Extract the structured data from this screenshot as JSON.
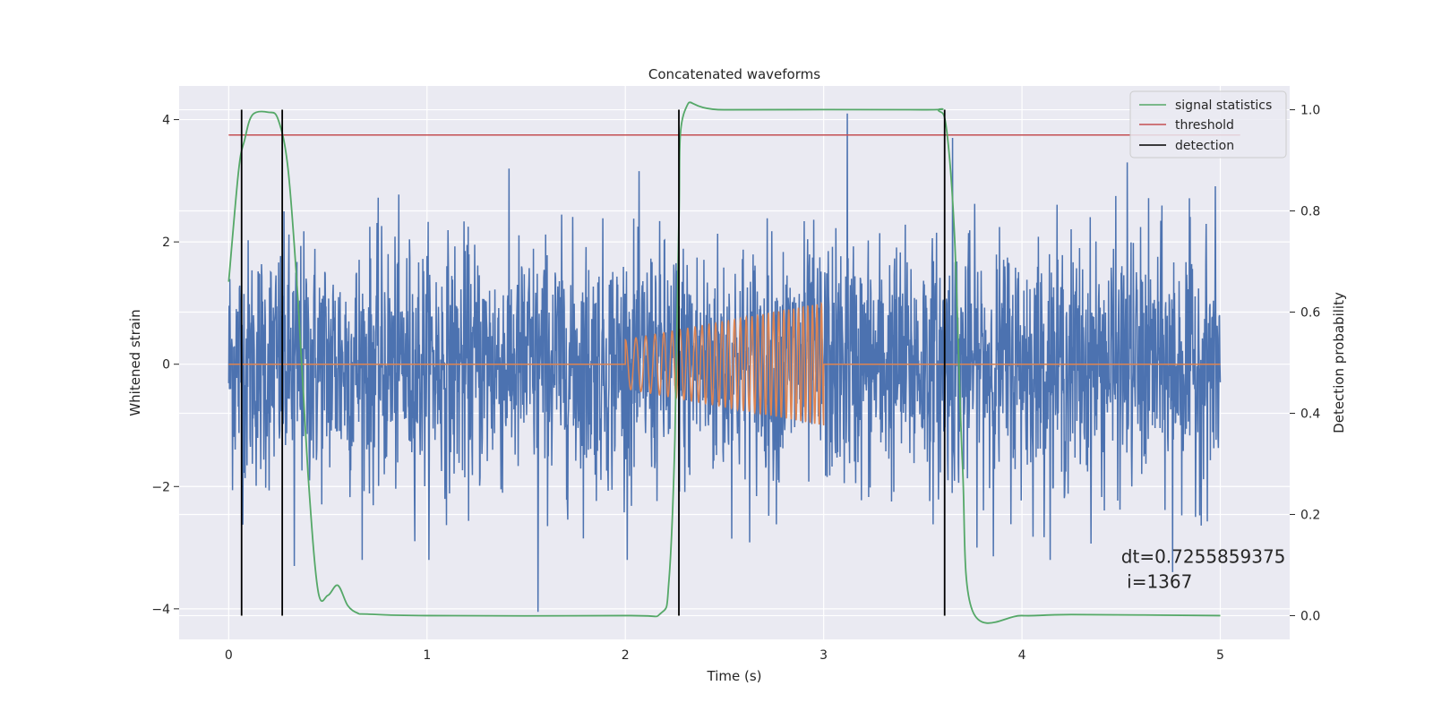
{
  "chart_data": {
    "type": "line",
    "title": "Concatenated waveforms",
    "xlabel": "Time (s)",
    "ylabel": "Whitened strain",
    "y2label": "Detection probability",
    "xlim": [
      -0.25,
      5.35
    ],
    "ylim": [
      -4.5,
      4.55
    ],
    "y2lim": [
      -0.047,
      1.047
    ],
    "xticks": [
      0,
      1,
      2,
      3,
      4,
      5
    ],
    "xtick_labels": [
      "0",
      "1",
      "2",
      "3",
      "4",
      "5"
    ],
    "yticks": [
      4,
      2,
      0,
      -2,
      -4
    ],
    "ytick_labels": [
      "4",
      "2",
      "0",
      "−2",
      "−4"
    ],
    "y2ticks": [
      1.0,
      0.8,
      0.6,
      0.4,
      0.2,
      0.0
    ],
    "y2tick_labels": [
      "1.0",
      "0.8",
      "0.6",
      "0.4",
      "0.2",
      "0.0"
    ],
    "grid": true,
    "background": "#eaeaf2",
    "legend_position": "top-right",
    "legend": [
      {
        "label": "signal statistics",
        "color": "#55a868"
      },
      {
        "label": "threshold",
        "color": "#c44e52"
      },
      {
        "label": "detection",
        "color": "#000000"
      }
    ],
    "noise_series": {
      "color": "#4c72b0",
      "x_range": [
        0,
        5
      ],
      "typical_amplitude": 1.0,
      "extremes": [
        {
          "x": 1.56,
          "y": -4.05
        },
        {
          "x": 3.12,
          "y": 4.1
        },
        {
          "x": 3.65,
          "y": 3.7
        },
        {
          "x": 4.53,
          "y": 3.3
        },
        {
          "x": 4.76,
          "y": -3.4
        },
        {
          "x": 0.33,
          "y": -3.3
        }
      ]
    },
    "injected_signal": {
      "color": "#dd8452",
      "x_range": [
        2.0,
        3.0
      ],
      "amplitude_start": 0.4,
      "amplitude_end": 1.0,
      "frequency_start_hz": 18,
      "frequency_end_hz": 45
    },
    "signal_statistics": {
      "color": "#55a868",
      "axis": "right",
      "x": [
        0,
        0.05,
        0.08,
        0.12,
        0.2,
        0.25,
        0.3,
        0.35,
        0.4,
        0.45,
        0.5,
        0.55,
        0.6,
        0.65,
        0.7,
        1.0,
        2.0,
        2.18,
        2.22,
        2.25,
        2.27,
        2.3,
        2.5,
        3.5,
        3.58,
        3.62,
        3.66,
        3.7,
        3.75,
        4.0,
        4.25,
        5.0
      ],
      "y": [
        0.66,
        0.88,
        0.94,
        0.99,
        0.995,
        0.98,
        0.88,
        0.62,
        0.28,
        0.05,
        0.04,
        0.06,
        0.02,
        0.005,
        0.003,
        0.0,
        0.0,
        0.005,
        0.07,
        0.35,
        0.78,
        0.998,
        1.0,
        1.0,
        0.998,
        0.96,
        0.75,
        0.3,
        0.01,
        0.0,
        0.002,
        0.0
      ]
    },
    "threshold": {
      "value": 0.95,
      "axis": "right",
      "x_range": [
        0,
        5.1
      ],
      "color": "#c44e52"
    },
    "detections": [
      0.065,
      0.27,
      2.27,
      3.61
    ],
    "annotation": {
      "line1": "dt=0.7255859375",
      "line2": " i=1367",
      "x": 4.5,
      "y": -3.25
    }
  }
}
